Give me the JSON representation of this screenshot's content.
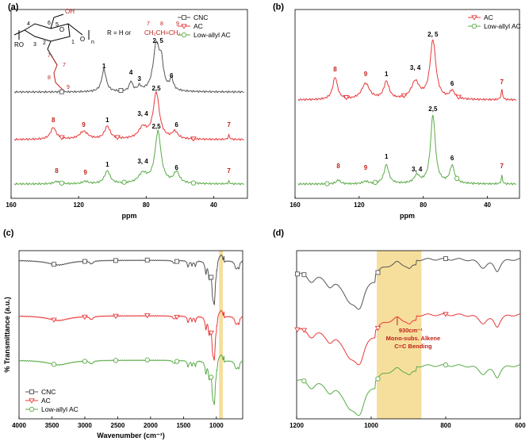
{
  "colors": {
    "cnc": "#555555",
    "ac": "#e8393a",
    "low": "#5aab47",
    "band": "#f5d98b",
    "annot": "#c0201a",
    "axis": "#000000"
  },
  "chart_data": [
    {
      "panel": "(a)",
      "type": "line",
      "title": "",
      "xlabel": "ppm",
      "xlim": [
        160,
        20
      ],
      "xticks": [
        "160",
        "120",
        "80",
        "40"
      ],
      "legend": [
        "CNC",
        "AC",
        "Low-allyl AC"
      ],
      "legend_position": "top-right",
      "structure_labels": [
        "6",
        "OH",
        "4",
        "5",
        "RO",
        "3",
        "2",
        "1",
        "O",
        "O",
        "7",
        "8",
        "9"
      ],
      "structure_suffix": "n",
      "r_definition": {
        "prefix": "R = H or ",
        "formula": "CH₂CH=CH₂",
        "numbers": [
          "7",
          "8",
          "9"
        ]
      },
      "series": [
        {
          "name": "CNC",
          "peaks": [
            {
              "ppm": 105,
              "label": "1"
            },
            {
              "ppm": 89,
              "label": "4"
            },
            {
              "ppm": 84,
              "label": "3"
            },
            {
              "ppm": 73,
              "label": "2, 5"
            },
            {
              "ppm": 65,
              "label": "6"
            }
          ]
        },
        {
          "name": "AC",
          "peaks": [
            {
              "ppm": 135,
              "label": "8"
            },
            {
              "ppm": 117,
              "label": "9"
            },
            {
              "ppm": 103,
              "label": "1"
            },
            {
              "ppm": 82,
              "label": "3, 4"
            },
            {
              "ppm": 74,
              "label": "2,5"
            },
            {
              "ppm": 62,
              "label": "6"
            },
            {
              "ppm": 31,
              "label": "7"
            }
          ]
        },
        {
          "name": "Low-allyl AC",
          "peaks": [
            {
              "ppm": 133,
              "label": "8"
            },
            {
              "ppm": 116,
              "label": "9"
            },
            {
              "ppm": 103,
              "label": "1"
            },
            {
              "ppm": 82,
              "label": "3, 4"
            },
            {
              "ppm": 74,
              "label": "2,5"
            },
            {
              "ppm": 62,
              "label": "6"
            },
            {
              "ppm": 31,
              "label": "7"
            }
          ]
        }
      ]
    },
    {
      "panel": "(b)",
      "type": "line",
      "xlabel": "ppm",
      "xlim": [
        160,
        20
      ],
      "xticks": [
        "160",
        "120",
        "80",
        "40"
      ],
      "legend": [
        "AC",
        "Low-allyl AC"
      ],
      "legend_position": "top-right",
      "series": [
        {
          "name": "AC",
          "peaks": [
            {
              "ppm": 135,
              "label": "8"
            },
            {
              "ppm": 116,
              "label": "9"
            },
            {
              "ppm": 103,
              "label": "1"
            },
            {
              "ppm": 85,
              "label": "3, 4"
            },
            {
              "ppm": 74,
              "label": "2, 5"
            },
            {
              "ppm": 62,
              "label": "6"
            },
            {
              "ppm": 31,
              "label": "7"
            }
          ]
        },
        {
          "name": "Low-allyl AC",
          "peaks": [
            {
              "ppm": 133,
              "label": "8"
            },
            {
              "ppm": 116,
              "label": "9"
            },
            {
              "ppm": 103,
              "label": "1"
            },
            {
              "ppm": 84,
              "label": "3, 4"
            },
            {
              "ppm": 74,
              "label": "2,5"
            },
            {
              "ppm": 62,
              "label": "6"
            },
            {
              "ppm": 31,
              "label": "7"
            }
          ]
        }
      ]
    },
    {
      "panel": "(c)",
      "type": "line",
      "xlabel": "Wavenumber (cm⁻¹)",
      "ylabel": "% Transmittance (a.u.)",
      "xlim": [
        4000,
        600
      ],
      "xticks": [
        "4000",
        "3500",
        "3000",
        "2500",
        "2000",
        "1500",
        "1000"
      ],
      "highlight_band": [
        960,
        900
      ],
      "legend": [
        "CNC",
        "AC",
        "Low-allyl AC"
      ],
      "legend_position": "bottom-left",
      "series": [
        {
          "name": "CNC"
        },
        {
          "name": "AC"
        },
        {
          "name": "Low-allyl AC"
        }
      ]
    },
    {
      "panel": "(d)",
      "type": "line",
      "xlim": [
        1200,
        600
      ],
      "xticks": [
        "1200",
        "1000",
        "800",
        "600"
      ],
      "highlight_band": [
        985,
        865
      ],
      "annotation": {
        "line1": "930cm⁻¹",
        "line2": "Mono-subs. Alkene",
        "line3": "C=C Bending",
        "wavenumber": 930
      },
      "series": [
        {
          "name": "CNC"
        },
        {
          "name": "AC"
        },
        {
          "name": "Low-allyl AC"
        }
      ]
    }
  ]
}
